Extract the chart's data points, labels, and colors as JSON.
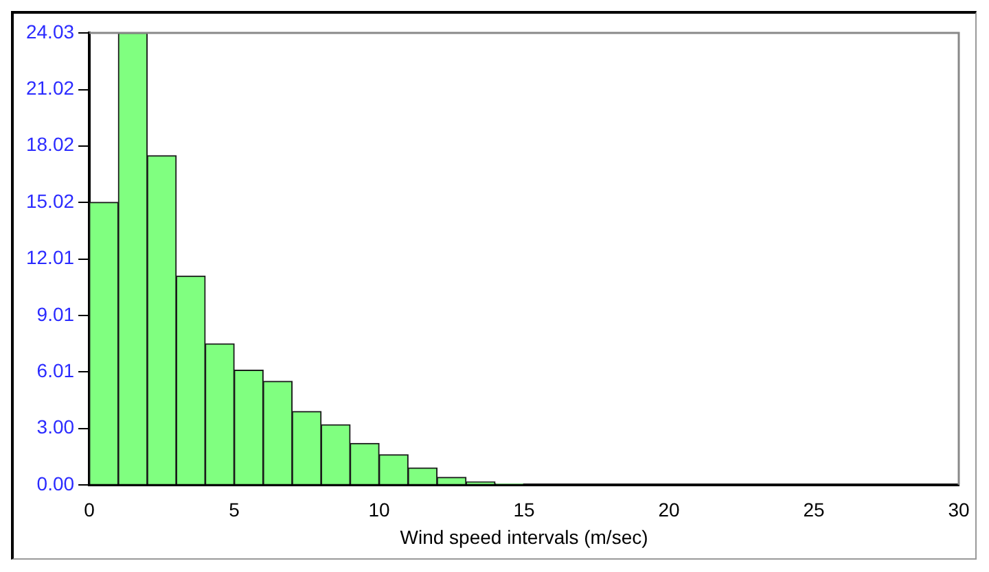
{
  "chart_data": {
    "type": "histogram",
    "xlabel": "Wind speed intervals (m/sec)",
    "bins": [
      0,
      1,
      2,
      3,
      4,
      5,
      6,
      7,
      8,
      9,
      10,
      11,
      12,
      13,
      14,
      15,
      16,
      17,
      18,
      19,
      20,
      21,
      22,
      23,
      24,
      25,
      26,
      27,
      28,
      29,
      30
    ],
    "values": [
      15.02,
      24.03,
      17.5,
      11.1,
      7.5,
      6.1,
      5.5,
      3.9,
      3.2,
      2.2,
      1.6,
      0.9,
      0.4,
      0.15,
      0.05,
      0,
      0,
      0,
      0,
      0,
      0,
      0,
      0,
      0,
      0,
      0,
      0,
      0,
      0,
      0
    ],
    "color": "#80ff80",
    "xlim": [
      0,
      30
    ],
    "xticks": [
      0,
      5,
      10,
      15,
      20,
      25,
      30
    ],
    "ylim": [
      0,
      24.03
    ],
    "yticks": [
      {
        "value": 0,
        "label": "0.00"
      },
      {
        "value": 3,
        "label": "3.00"
      },
      {
        "value": 6.01,
        "label": "6.01"
      },
      {
        "value": 9.01,
        "label": "9.01"
      },
      {
        "value": 12.01,
        "label": "12.01"
      },
      {
        "value": 15.02,
        "label": "15.02"
      },
      {
        "value": 18.02,
        "label": "18.02"
      },
      {
        "value": 21.02,
        "label": "21.02"
      },
      {
        "value": 24.03,
        "label": "24.03"
      }
    ],
    "grid": false,
    "legend": false
  }
}
